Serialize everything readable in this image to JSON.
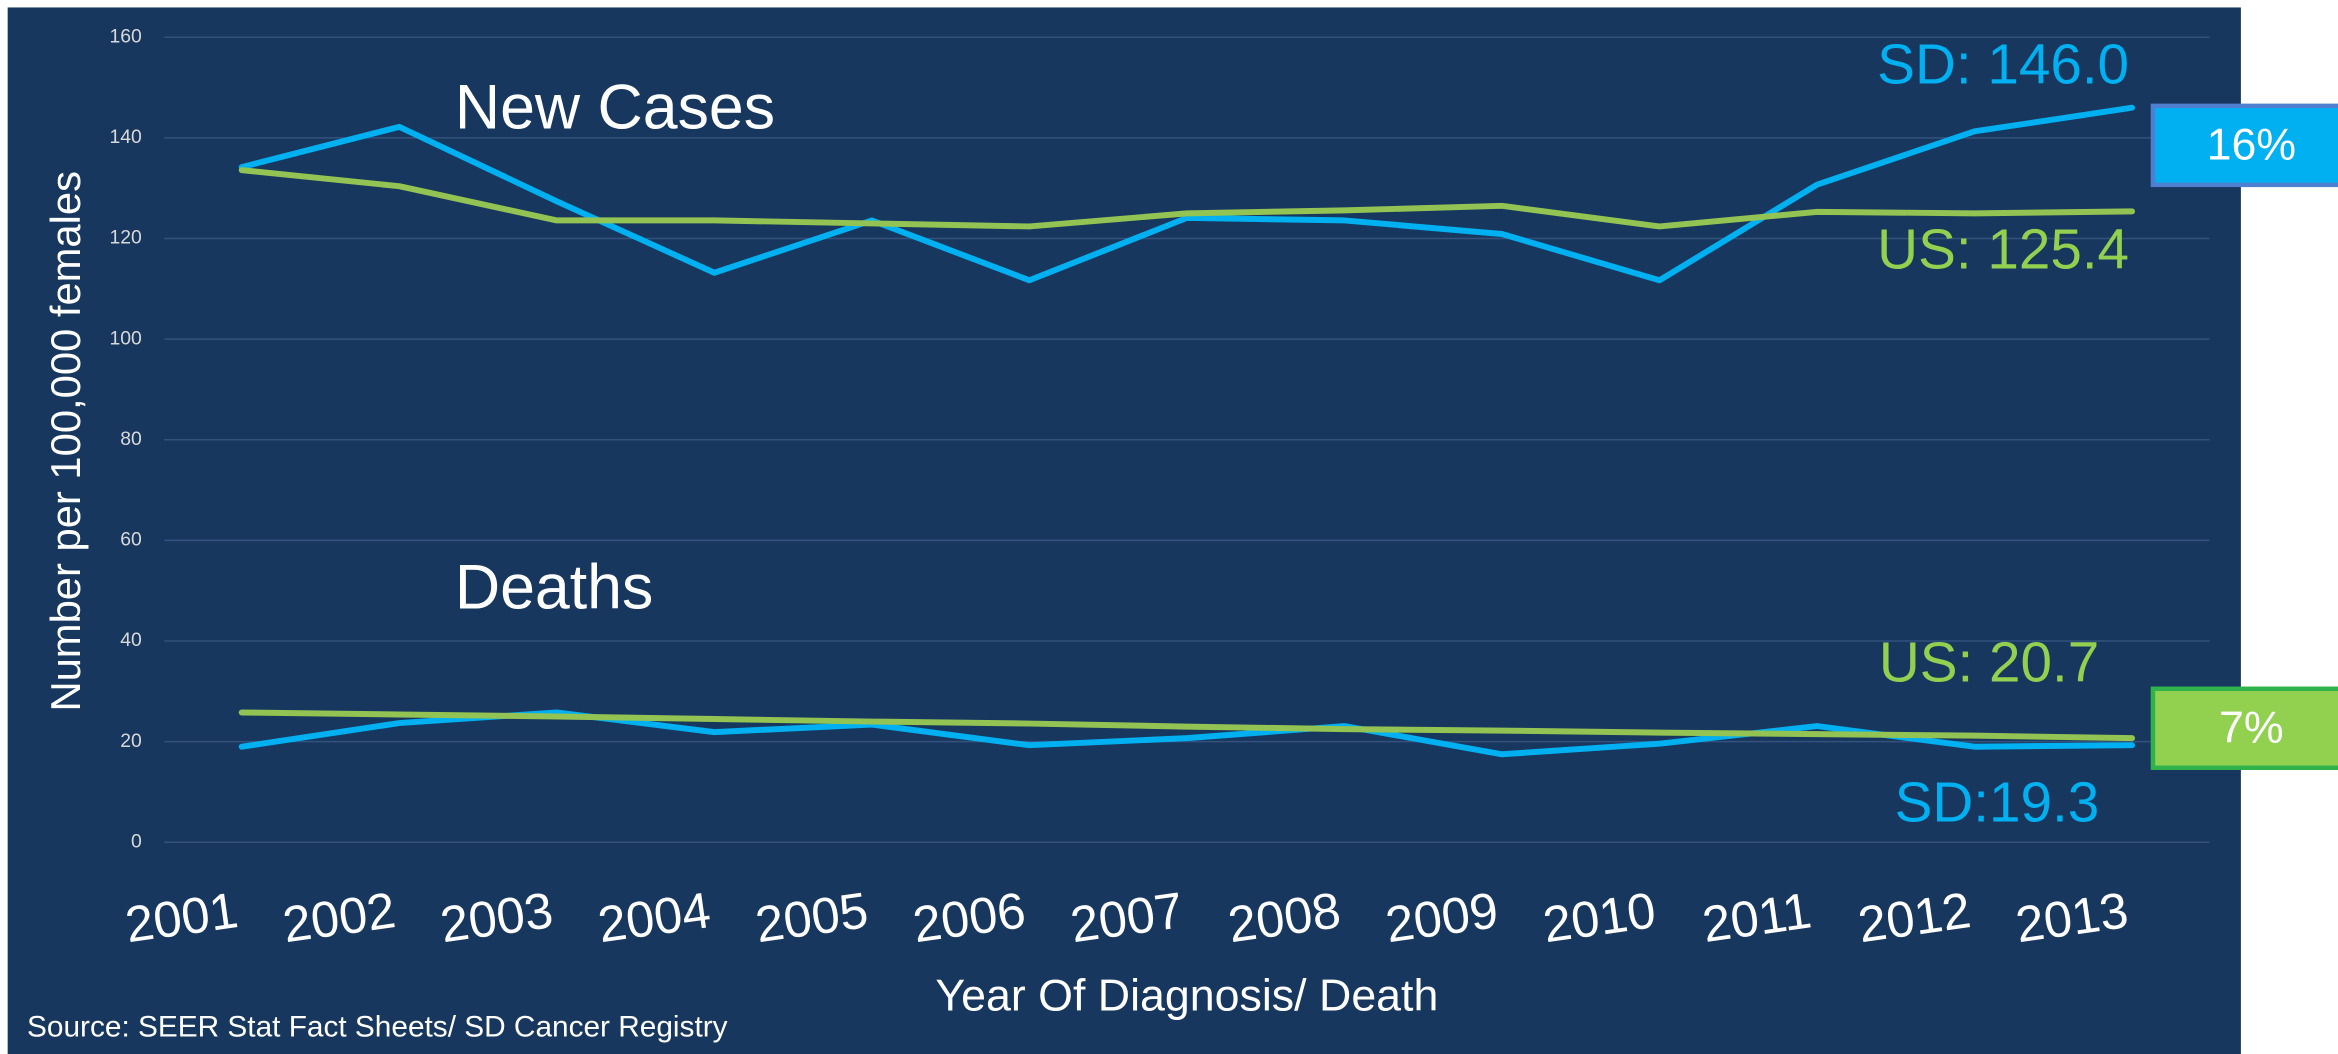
{
  "chart_data": {
    "type": "line",
    "categories": [
      "2001",
      "2002",
      "2003",
      "2004",
      "2005",
      "2006",
      "2007",
      "2008",
      "2009",
      "2010",
      "2011",
      "2012",
      "2013"
    ],
    "series": [
      {
        "color": "#00b0f0",
        "values": [
          134.2,
          142.2,
          127.4,
          113.2,
          123.6,
          111.7,
          124.1,
          123.6,
          120.9,
          111.7,
          130.7,
          141.3,
          146.0
        ]
      },
      {
        "color": "#92c353",
        "values": [
          133.6,
          130.4,
          123.6,
          123.6,
          123.0,
          122.4,
          125.0,
          125.6,
          126.5,
          122.4,
          125.3,
          125.0,
          125.4
        ]
      },
      {
        "color": "#00b0f0",
        "values": [
          19.0,
          23.7,
          25.8,
          21.9,
          23.4,
          19.3,
          20.7,
          23.1,
          17.5,
          19.6,
          23.1,
          19.0,
          19.3
        ]
      },
      {
        "color": "#92c353",
        "values": [
          25.8,
          25.4,
          25.0,
          24.5,
          24.0,
          23.6,
          23.0,
          22.5,
          22.2,
          21.8,
          21.5,
          21.2,
          20.7
        ]
      }
    ],
    "ylim": [
      0,
      160
    ],
    "yticks": [
      0,
      20,
      40,
      60,
      80,
      100,
      120,
      140,
      160
    ],
    "grid": true,
    "y_label": "Number per 100,000 females",
    "x_label": "Year Of Diagnosis/ Death",
    "source": "Source: SEER Stat Fact Sheets/ SD Cancer Registry",
    "annotations": [
      {
        "text": "New Cases",
        "color": "#ffffff"
      },
      {
        "text": "Deaths",
        "color": "#ffffff"
      },
      {
        "text": "SD: 146.0",
        "color": "#00b0f0"
      },
      {
        "text": "US: 125.4",
        "color": "#92d050"
      },
      {
        "text": "US: 20.7",
        "color": "#92d050"
      },
      {
        "text": "SD:19.3",
        "color": "#00b0f0"
      }
    ],
    "callouts": [
      {
        "text": "16%",
        "color": "#00b0f0",
        "border": "#4f7fd0"
      },
      {
        "text": "7%",
        "color": "#92d050",
        "border": "#2fb24a"
      }
    ]
  }
}
